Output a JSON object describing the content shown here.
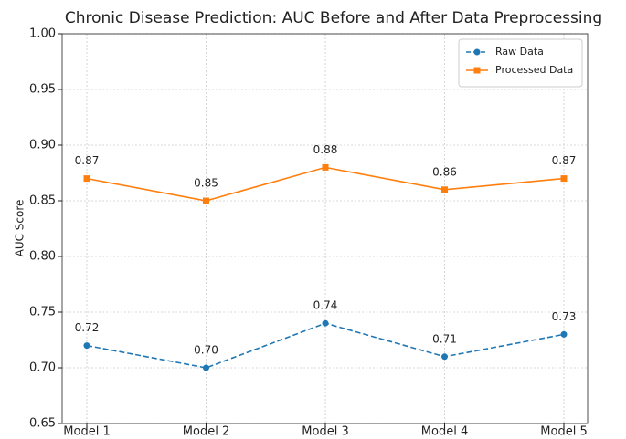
{
  "chart_data": {
    "type": "line",
    "title": "Chronic Disease Prediction: AUC Before and After Data Preprocessing",
    "y_label": "AUC Score",
    "categories": [
      "Model 1",
      "Model 2",
      "Model 3",
      "Model 4",
      "Model 5"
    ],
    "series": [
      {
        "name": "Raw Data",
        "color": "#1f77b4",
        "linestyle": "dashed",
        "marker": "circle",
        "values": [
          0.72,
          0.7,
          0.74,
          0.71,
          0.73
        ],
        "value_labels": [
          "0.72",
          "0.70",
          "0.74",
          "0.71",
          "0.73"
        ]
      },
      {
        "name": "Processed Data",
        "color": "#ff7f0e",
        "linestyle": "solid",
        "marker": "square",
        "values": [
          0.87,
          0.85,
          0.88,
          0.86,
          0.87
        ],
        "value_labels": [
          "0.87",
          "0.85",
          "0.88",
          "0.86",
          "0.87"
        ]
      }
    ],
    "ylim": [
      0.65,
      1.0
    ],
    "yticks": [
      0.65,
      {
        "value": 0.7,
        "label": "0.70"
      },
      0.75,
      {
        "value": 0.8,
        "label": "0.80"
      },
      0.85,
      {
        "value": 0.9,
        "label": "0.90"
      },
      0.95,
      {
        "value": 1.0,
        "label": "1.00"
      }
    ],
    "grid": true,
    "legend": "upper right"
  }
}
